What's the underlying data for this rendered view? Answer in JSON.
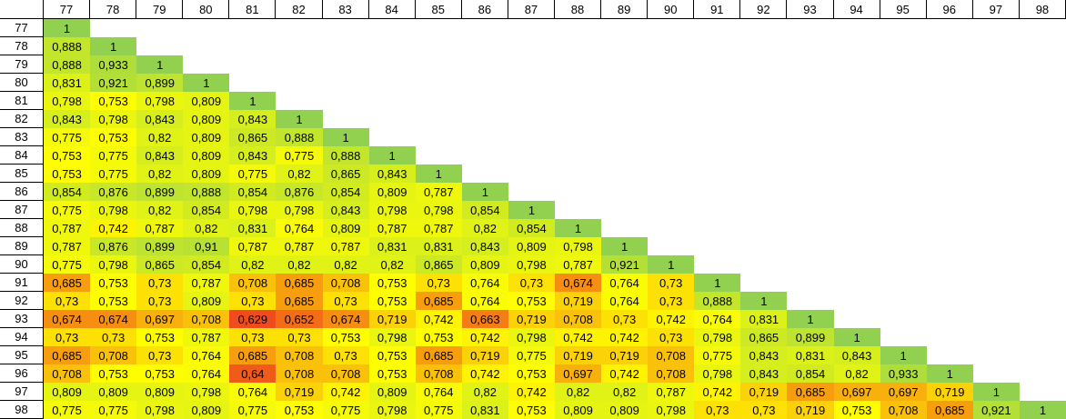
{
  "chart_data": {
    "type": "heatmap",
    "labels": [
      "77",
      "78",
      "79",
      "80",
      "81",
      "82",
      "83",
      "84",
      "85",
      "86",
      "87",
      "88",
      "89",
      "90",
      "91",
      "92",
      "93",
      "94",
      "95",
      "96",
      "97",
      "98"
    ],
    "rows": [
      [
        "1"
      ],
      [
        "0,888",
        "1"
      ],
      [
        "0,888",
        "0,933",
        "1"
      ],
      [
        "0,831",
        "0,921",
        "0,899",
        "1"
      ],
      [
        "0,798",
        "0,753",
        "0,798",
        "0,809",
        "1"
      ],
      [
        "0,843",
        "0,798",
        "0,843",
        "0,809",
        "0,843",
        "1"
      ],
      [
        "0,775",
        "0,753",
        "0,82",
        "0,809",
        "0,865",
        "0,888",
        "1"
      ],
      [
        "0,753",
        "0,775",
        "0,843",
        "0,809",
        "0,843",
        "0,775",
        "0,888",
        "1"
      ],
      [
        "0,753",
        "0,775",
        "0,82",
        "0,809",
        "0,775",
        "0,82",
        "0,865",
        "0,843",
        "1"
      ],
      [
        "0,854",
        "0,876",
        "0,899",
        "0,888",
        "0,854",
        "0,876",
        "0,854",
        "0,809",
        "0,787",
        "1"
      ],
      [
        "0,775",
        "0,798",
        "0,82",
        "0,854",
        "0,798",
        "0,798",
        "0,843",
        "0,798",
        "0,798",
        "0,854",
        "1"
      ],
      [
        "0,787",
        "0,742",
        "0,787",
        "0,82",
        "0,831",
        "0,764",
        "0,809",
        "0,787",
        "0,787",
        "0,82",
        "0,854",
        "1"
      ],
      [
        "0,787",
        "0,876",
        "0,899",
        "0,91",
        "0,787",
        "0,787",
        "0,787",
        "0,831",
        "0,831",
        "0,843",
        "0,809",
        "0,798",
        "1"
      ],
      [
        "0,775",
        "0,798",
        "0,865",
        "0,854",
        "0,82",
        "0,82",
        "0,82",
        "0,82",
        "0,865",
        "0,809",
        "0,798",
        "0,787",
        "0,921",
        "1"
      ],
      [
        "0,685",
        "0,753",
        "0,73",
        "0,787",
        "0,708",
        "0,685",
        "0,708",
        "0,753",
        "0,73",
        "0,764",
        "0,73",
        "0,674",
        "0,764",
        "0,73",
        "1"
      ],
      [
        "0,73",
        "0,753",
        "0,73",
        "0,809",
        "0,73",
        "0,685",
        "0,73",
        "0,753",
        "0,685",
        "0,764",
        "0,753",
        "0,719",
        "0,764",
        "0,73",
        "0,888",
        "1"
      ],
      [
        "0,674",
        "0,674",
        "0,697",
        "0,708",
        "0,629",
        "0,652",
        "0,674",
        "0,719",
        "0,742",
        "0,663",
        "0,719",
        "0,708",
        "0,73",
        "0,742",
        "0,764",
        "0,831",
        "1"
      ],
      [
        "0,73",
        "0,73",
        "0,753",
        "0,787",
        "0,73",
        "0,73",
        "0,753",
        "0,798",
        "0,753",
        "0,742",
        "0,798",
        "0,742",
        "0,742",
        "0,73",
        "0,798",
        "0,865",
        "0,899",
        "1"
      ],
      [
        "0,685",
        "0,708",
        "0,73",
        "0,764",
        "0,685",
        "0,708",
        "0,73",
        "0,753",
        "0,685",
        "0,719",
        "0,775",
        "0,719",
        "0,719",
        "0,708",
        "0,775",
        "0,843",
        "0,831",
        "0,843",
        "1"
      ],
      [
        "0,708",
        "0,753",
        "0,753",
        "0,764",
        "0,64",
        "0,708",
        "0,708",
        "0,753",
        "0,708",
        "0,742",
        "0,753",
        "0,697",
        "0,742",
        "0,708",
        "0,798",
        "0,843",
        "0,854",
        "0,82",
        "0,933",
        "1"
      ],
      [
        "0,809",
        "0,809",
        "0,809",
        "0,798",
        "0,764",
        "0,719",
        "0,742",
        "0,809",
        "0,764",
        "0,82",
        "0,742",
        "0,82",
        "0,82",
        "0,787",
        "0,742",
        "0,719",
        "0,685",
        "0,697",
        "0,697",
        "0,719",
        "1"
      ],
      [
        "0,775",
        "0,775",
        "0,798",
        "0,809",
        "0,775",
        "0,753",
        "0,775",
        "0,798",
        "0,775",
        "0,831",
        "0,753",
        "0,809",
        "0,809",
        "0,798",
        "0,73",
        "0,73",
        "0,719",
        "0,753",
        "0,708",
        "0,685",
        "0,921",
        "1"
      ]
    ],
    "color_scale": {
      "min": 0.629,
      "mid": 0.75,
      "max": 1,
      "min_color": "#f04b1c",
      "mid_color": "#ffff00",
      "max_color": "#92d050"
    }
  }
}
